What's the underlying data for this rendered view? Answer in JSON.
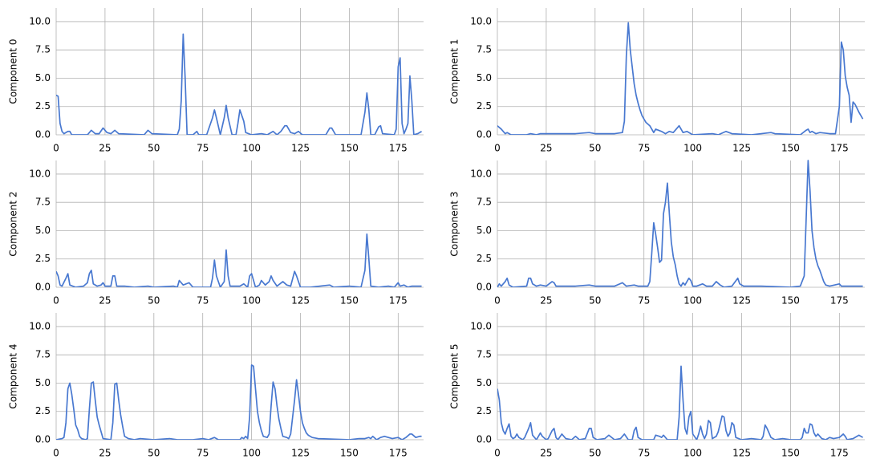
{
  "chart_data": [
    {
      "type": "line",
      "ylabel": "Component 0",
      "color": "#4878d0",
      "grid": true,
      "xlim": [
        0,
        188
      ],
      "ylim": [
        0,
        11.2
      ],
      "xticks": [
        0,
        25,
        50,
        75,
        100,
        125,
        150,
        175
      ],
      "yticks": [
        {
          "value": 0,
          "label": "0.0"
        },
        {
          "value": 2.5,
          "label": "2.5"
        },
        {
          "value": 5,
          "label": "5.0"
        },
        {
          "value": 7.5,
          "label": "7.5"
        },
        {
          "value": 10,
          "label": "10.0"
        }
      ],
      "x": [
        0,
        1,
        2,
        3,
        4,
        6,
        7,
        8,
        16,
        18,
        20,
        22,
        24,
        26,
        28,
        30,
        32,
        45,
        47,
        49,
        62,
        63,
        64,
        65,
        66,
        67,
        70,
        72,
        73,
        77,
        80,
        81,
        82,
        84,
        86,
        87,
        88,
        90,
        92,
        93,
        94,
        96,
        97,
        100,
        105,
        108,
        111,
        113,
        115,
        117,
        118,
        120,
        122,
        124,
        126,
        138,
        140,
        141,
        143,
        156,
        158,
        159,
        160,
        161,
        163,
        165,
        166,
        167,
        173,
        174,
        175,
        176,
        177,
        178,
        179,
        180,
        181,
        182,
        183,
        185,
        187
      ],
      "values": [
        3.5,
        3.4,
        1,
        0.3,
        0.1,
        0.3,
        0.3,
        0,
        0,
        0.4,
        0.1,
        0.1,
        0.6,
        0.2,
        0.1,
        0.4,
        0.1,
        0,
        0.4,
        0.1,
        0,
        0.5,
        3,
        8.9,
        5,
        0,
        0,
        0.3,
        0,
        0,
        1.5,
        2.2,
        1.5,
        0,
        1.5,
        2.6,
        1.5,
        0,
        0,
        1,
        2.2,
        1.2,
        0.2,
        0,
        0.1,
        0,
        0.3,
        0,
        0.3,
        0.8,
        0.8,
        0.2,
        0.1,
        0.3,
        0,
        0,
        0.6,
        0.6,
        0,
        0,
        2,
        3.7,
        2.2,
        0,
        0,
        0.7,
        0.8,
        0.1,
        0,
        0.5,
        6,
        6.8,
        1,
        0.1,
        0.5,
        1,
        5.2,
        3,
        0,
        0.1,
        0.3
      ]
    },
    {
      "type": "line",
      "ylabel": "Component 1",
      "color": "#4878d0",
      "grid": true,
      "xlim": [
        0,
        188
      ],
      "ylim": [
        0,
        11.2
      ],
      "xticks": [
        0,
        25,
        50,
        75,
        100,
        125,
        150,
        175
      ],
      "yticks": [
        {
          "value": 0,
          "label": "0.0"
        },
        {
          "value": 2.5,
          "label": "2.5"
        },
        {
          "value": 5,
          "label": "5.0"
        },
        {
          "value": 7.5,
          "label": "7.5"
        },
        {
          "value": 10,
          "label": "10.0"
        }
      ],
      "x": [
        0,
        2,
        4,
        5,
        7,
        15,
        17,
        20,
        22,
        40,
        47,
        50,
        60,
        64,
        65,
        66,
        67,
        68,
        69,
        70,
        71,
        72,
        73,
        74,
        75,
        76,
        78,
        80,
        81,
        84,
        86,
        88,
        90,
        92,
        93,
        95,
        97,
        100,
        110,
        113,
        117,
        120,
        130,
        140,
        142,
        155,
        158,
        159,
        160,
        161,
        163,
        165,
        170,
        173,
        175,
        176,
        177,
        178,
        179,
        180,
        181,
        182,
        183,
        185,
        187
      ],
      "values": [
        0.8,
        0.5,
        0.1,
        0.2,
        0,
        0,
        0.1,
        0,
        0.1,
        0.1,
        0.2,
        0.1,
        0.1,
        0.2,
        1.2,
        7,
        9.9,
        7.5,
        6,
        4.5,
        3.5,
        2.8,
        2.2,
        1.7,
        1.4,
        1.1,
        0.8,
        0.2,
        0.5,
        0.3,
        0.1,
        0.3,
        0.2,
        0.6,
        0.8,
        0.2,
        0.3,
        0,
        0.1,
        0,
        0.3,
        0.1,
        0,
        0.2,
        0.1,
        0,
        0.4,
        0.5,
        0.2,
        0.3,
        0.1,
        0.2,
        0.1,
        0.1,
        2.5,
        8.2,
        7.5,
        5.2,
        4.2,
        3.5,
        1.1,
        2.9,
        2.7,
        2,
        1.4
      ]
    },
    {
      "type": "line",
      "ylabel": "Component 2",
      "color": "#4878d0",
      "grid": true,
      "xlim": [
        0,
        188
      ],
      "ylim": [
        0,
        11.2
      ],
      "xticks": [
        0,
        25,
        50,
        75,
        100,
        125,
        150,
        175
      ],
      "yticks": [
        {
          "value": 0,
          "label": "0.0"
        },
        {
          "value": 2.5,
          "label": "2.5"
        },
        {
          "value": 5,
          "label": "5.0"
        },
        {
          "value": 7.5,
          "label": "7.5"
        },
        {
          "value": 10,
          "label": "10.0"
        }
      ],
      "x": [
        0,
        1,
        2,
        3,
        5,
        6,
        7,
        10,
        14,
        16,
        17,
        18,
        19,
        21,
        23,
        24,
        25,
        28,
        29,
        30,
        31,
        35,
        40,
        47,
        50,
        60,
        62,
        63,
        65,
        68,
        70,
        79,
        80,
        81,
        82,
        84,
        86,
        87,
        88,
        89,
        94,
        96,
        98,
        99,
        100,
        102,
        104,
        105,
        107,
        109,
        110,
        111,
        113,
        116,
        118,
        120,
        122,
        123,
        125,
        130,
        140,
        142,
        150,
        156,
        158,
        159,
        160,
        161,
        165,
        170,
        173,
        175,
        176,
        178,
        180,
        182,
        187
      ],
      "values": [
        1.4,
        1,
        0.2,
        0.1,
        0.8,
        1.2,
        0.2,
        0,
        0.1,
        0.4,
        1.2,
        1.5,
        0.3,
        0.1,
        0.2,
        0.4,
        0.1,
        0.1,
        1,
        1,
        0.1,
        0.1,
        0,
        0.1,
        0,
        0.1,
        0,
        0.6,
        0.2,
        0.4,
        0,
        0,
        0.8,
        2.4,
        1,
        0,
        0.5,
        3.3,
        1,
        0.1,
        0.1,
        0.3,
        0,
        1,
        1.2,
        0,
        0.2,
        0.6,
        0.2,
        0.5,
        1,
        0.6,
        0.1,
        0.5,
        0.2,
        0.1,
        1.4,
        1,
        0,
        0,
        0.2,
        0,
        0.1,
        0,
        1.5,
        4.7,
        2.5,
        0.1,
        0,
        0.1,
        0,
        0.4,
        0.1,
        0.2,
        0,
        0.1,
        0.1
      ]
    },
    {
      "type": "line",
      "ylabel": "Component 3",
      "color": "#4878d0",
      "grid": true,
      "xlim": [
        0,
        188
      ],
      "ylim": [
        0,
        11.2
      ],
      "xticks": [
        0,
        25,
        50,
        75,
        100,
        125,
        150,
        175
      ],
      "yticks": [
        {
          "value": 0,
          "label": "0.0"
        },
        {
          "value": 2.5,
          "label": "2.5"
        },
        {
          "value": 5,
          "label": "5.0"
        },
        {
          "value": 7.5,
          "label": "7.5"
        },
        {
          "value": 10,
          "label": "10.0"
        }
      ],
      "x": [
        0,
        1,
        2,
        4,
        5,
        6,
        8,
        15,
        16,
        17,
        18,
        20,
        22,
        25,
        28,
        29,
        30,
        40,
        47,
        50,
        60,
        64,
        66,
        70,
        72,
        77,
        78,
        79,
        80,
        81,
        82,
        83,
        84,
        85,
        86,
        87,
        88,
        89,
        90,
        91,
        92,
        93,
        94,
        95,
        96,
        98,
        99,
        100,
        102,
        105,
        107,
        110,
        112,
        114,
        116,
        120,
        123,
        124,
        126,
        135,
        150,
        155,
        157,
        158,
        159,
        160,
        161,
        162,
        163,
        164,
        165,
        166,
        167,
        168,
        170,
        175,
        176,
        187
      ],
      "values": [
        0,
        0.3,
        0.1,
        0.5,
        0.8,
        0.2,
        0,
        0.1,
        0.8,
        0.8,
        0.3,
        0.1,
        0.2,
        0.1,
        0.5,
        0.4,
        0.1,
        0.1,
        0.2,
        0.1,
        0.1,
        0.4,
        0.1,
        0.2,
        0.1,
        0.1,
        0.5,
        3,
        5.7,
        4.7,
        3.5,
        2.2,
        2.4,
        6.5,
        7.5,
        9.2,
        6.5,
        4,
        2.7,
        2,
        1,
        0.3,
        0.1,
        0.4,
        0.2,
        0.8,
        0.6,
        0.1,
        0.1,
        0.3,
        0.1,
        0.1,
        0.5,
        0.2,
        0,
        0.1,
        0.8,
        0.3,
        0.1,
        0.1,
        0,
        0.1,
        1,
        6,
        11.2,
        8.5,
        5,
        3.5,
        2.5,
        1.9,
        1.5,
        1,
        0.5,
        0.2,
        0.1,
        0.3,
        0.1,
        0.1
      ]
    },
    {
      "type": "line",
      "ylabel": "Component 4",
      "color": "#4878d0",
      "grid": true,
      "xlim": [
        0,
        188
      ],
      "ylim": [
        0,
        11.2
      ],
      "xticks": [
        0,
        25,
        50,
        75,
        100,
        125,
        150,
        175
      ],
      "yticks": [
        {
          "value": 0,
          "label": "0.0"
        },
        {
          "value": 2.5,
          "label": "2.5"
        },
        {
          "value": 5,
          "label": "5.0"
        },
        {
          "value": 7.5,
          "label": "7.5"
        },
        {
          "value": 10,
          "label": "10.0"
        }
      ],
      "x": [
        0,
        3,
        4,
        5,
        6,
        7,
        8,
        9,
        10,
        11,
        12,
        13,
        15,
        16,
        17,
        18,
        19,
        20,
        21,
        22,
        23,
        24,
        28,
        29,
        30,
        31,
        32,
        33,
        34,
        35,
        37,
        40,
        43,
        50,
        58,
        62,
        70,
        75,
        78,
        81,
        83,
        94,
        95,
        96,
        97,
        98,
        99,
        100,
        101,
        102,
        103,
        104,
        105,
        106,
        108,
        109,
        110,
        111,
        112,
        113,
        114,
        115,
        116,
        118,
        119,
        120,
        122,
        123,
        124,
        125,
        126,
        127,
        128,
        129,
        131,
        134,
        150,
        155,
        158,
        160,
        161,
        162,
        164,
        166,
        168,
        170,
        172,
        175,
        177,
        179,
        181,
        182,
        184,
        186,
        187
      ],
      "values": [
        0,
        0.1,
        0.2,
        1.5,
        4.5,
        5,
        4,
        2.7,
        1.3,
        0.9,
        0.3,
        0.1,
        0,
        0.1,
        2.7,
        5,
        5.1,
        3.5,
        2,
        1.3,
        0.7,
        0.1,
        0,
        1.5,
        4.9,
        5,
        3.5,
        2.2,
        1.2,
        0.3,
        0.1,
        0,
        0.1,
        0,
        0.1,
        0,
        0,
        0.1,
        0,
        0.2,
        0,
        0,
        0.2,
        0.1,
        0.3,
        0.1,
        2,
        6.6,
        6.5,
        4.5,
        2.5,
        1.5,
        0.8,
        0.3,
        0.2,
        0.5,
        3,
        5.1,
        4.5,
        3,
        1.8,
        1,
        0.3,
        0.2,
        0.1,
        0.5,
        3.5,
        5.3,
        4,
        2.5,
        1.5,
        1,
        0.6,
        0.4,
        0.2,
        0.1,
        0,
        0.1,
        0.1,
        0.2,
        0.1,
        0.3,
        0,
        0.2,
        0.3,
        0.2,
        0.1,
        0.2,
        0,
        0.2,
        0.5,
        0.5,
        0.2,
        0.3,
        0.3
      ]
    },
    {
      "type": "line",
      "ylabel": "Component 5",
      "color": "#4878d0",
      "grid": true,
      "xlim": [
        0,
        188
      ],
      "ylim": [
        0,
        11.2
      ],
      "xticks": [
        0,
        25,
        50,
        75,
        100,
        125,
        150,
        175
      ],
      "yticks": [
        {
          "value": 0,
          "label": "0.0"
        },
        {
          "value": 2.5,
          "label": "2.5"
        },
        {
          "value": 5,
          "label": "5.0"
        },
        {
          "value": 7.5,
          "label": "7.5"
        },
        {
          "value": 10,
          "label": "10.0"
        }
      ],
      "x": [
        0,
        1,
        2,
        3,
        4,
        5,
        6,
        7,
        8,
        9,
        10,
        11,
        13,
        14,
        16,
        17,
        18,
        20,
        21,
        22,
        23,
        25,
        26,
        28,
        29,
        30,
        31,
        33,
        35,
        38,
        40,
        42,
        45,
        47,
        48,
        49,
        51,
        55,
        57,
        60,
        63,
        65,
        67,
        69,
        70,
        71,
        72,
        74,
        80,
        81,
        83,
        84,
        85,
        87,
        92,
        93,
        94,
        95,
        96,
        97,
        98,
        99,
        100,
        102,
        103,
        104,
        105,
        106,
        107,
        108,
        109,
        110,
        112,
        113,
        115,
        116,
        117,
        118,
        119,
        120,
        121,
        122,
        125,
        130,
        135,
        136,
        137,
        138,
        140,
        142,
        146,
        150,
        155,
        156,
        157,
        158,
        159,
        160,
        161,
        162,
        163,
        164,
        166,
        168,
        170,
        172,
        175,
        177,
        178,
        179,
        182,
        185,
        187
      ],
      "values": [
        4.5,
        3.5,
        1.5,
        0.8,
        0.5,
        1,
        1.4,
        0.3,
        0.1,
        0.2,
        0.5,
        0.2,
        0,
        0.2,
        1,
        1.5,
        0.4,
        0,
        0.3,
        0.6,
        0.3,
        0,
        0.1,
        0.8,
        1,
        0.2,
        0,
        0.5,
        0.1,
        0,
        0.3,
        0,
        0.1,
        1,
        1,
        0.2,
        0,
        0.1,
        0.4,
        0,
        0.1,
        0.5,
        0,
        0,
        0.8,
        1.1,
        0.2,
        0,
        0,
        0.4,
        0.3,
        0.2,
        0.4,
        0,
        0,
        2,
        6.5,
        3.5,
        1,
        0.5,
        2,
        2.5,
        0.5,
        0,
        0.5,
        1.2,
        0.5,
        0.1,
        0.5,
        1.7,
        1.5,
        0.1,
        0.3,
        0.7,
        2.1,
        2,
        0.8,
        0.3,
        0.6,
        1.5,
        1.3,
        0.2,
        0,
        0.1,
        0,
        0.3,
        1.3,
        1,
        0.2,
        0,
        0.1,
        0,
        0,
        0.2,
        1,
        0.6,
        0.6,
        1.4,
        1.3,
        0.6,
        0.3,
        0.5,
        0.1,
        0,
        0.2,
        0.1,
        0.2,
        0.5,
        0.3,
        0,
        0.1,
        0.4,
        0.2
      ]
    }
  ]
}
